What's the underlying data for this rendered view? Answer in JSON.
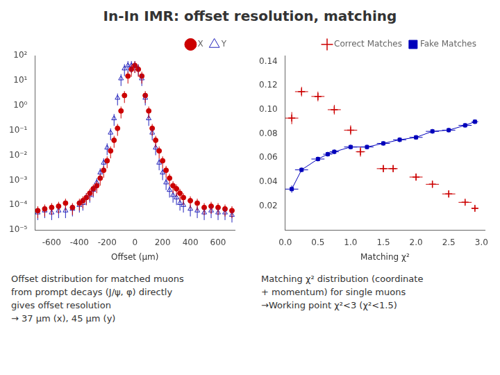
{
  "title": "In-In IMR: offset resolution, matching",
  "chart_data": [
    {
      "type": "scatter",
      "xlabel": "Offset (μm)",
      "log": "y",
      "grid": false,
      "legend": "upper right",
      "xlim": [
        -720,
        720
      ],
      "xticks": [
        -600,
        -400,
        -200,
        0,
        200,
        400,
        600
      ],
      "ylim": [
        1e-05,
        100
      ],
      "yticks": [
        {
          "value": 1e-05,
          "label": "10⁻⁵"
        },
        {
          "value": 0.0001,
          "label": "10⁻⁴"
        },
        {
          "value": 0.001,
          "label": "10⁻³"
        },
        {
          "value": 0.01,
          "label": "10⁻²"
        },
        {
          "value": 0.1,
          "label": "10⁻¹"
        },
        {
          "value": 1,
          "label": "10⁰"
        },
        {
          "value": 10,
          "label": "10¹"
        },
        {
          "value": 100,
          "label": "10²"
        }
      ],
      "annotations": [
        "Offset distribution for matched muons",
        "from prompt decays (J/ψ, φ) directly",
        "gives offset resolution",
        "→ 37 μm (x), 45 μm (y)"
      ],
      "series": [
        {
          "name": "Y",
          "color": "#2222BB",
          "marker": "triangle-open",
          "x": [
            -700,
            -650,
            -600,
            -550,
            -500,
            -450,
            -400,
            -375,
            -350,
            -325,
            -300,
            -275,
            -250,
            -225,
            -200,
            -175,
            -150,
            -125,
            -100,
            -75,
            -50,
            -25,
            0,
            25,
            50,
            75,
            100,
            125,
            150,
            175,
            200,
            225,
            250,
            275,
            300,
            325,
            350,
            400,
            450,
            500,
            550,
            600,
            650,
            700
          ],
          "values": [
            5e-05,
            6e-05,
            5e-05,
            6e-05,
            6e-05,
            7e-05,
            0.0001,
            0.00012,
            0.0002,
            0.00025,
            0.0004,
            0.0008,
            0.002,
            0.005,
            0.02,
            0.08,
            0.3,
            2.0,
            12,
            30,
            40,
            40,
            40,
            30,
            12,
            2.0,
            0.3,
            0.08,
            0.02,
            0.005,
            0.002,
            0.0008,
            0.0004,
            0.00025,
            0.0002,
            0.00012,
            0.0001,
            7e-05,
            6e-05,
            5e-05,
            6e-05,
            5e-05,
            5e-05,
            4e-05
          ],
          "y_errors": [
            2.5e-05,
            3e-05,
            2.5e-05,
            3e-05,
            3e-05,
            3.5e-05,
            5e-05,
            6e-05,
            0.0001,
            0.000125,
            0.0002,
            0.0004,
            0.001,
            0.0025,
            0.01,
            0.04,
            0.15,
            1,
            6,
            15,
            20,
            20,
            20,
            15,
            6,
            1,
            0.15,
            0.04,
            0.01,
            0.0025,
            0.001,
            0.0004,
            0.0002,
            0.000125,
            0.0001,
            6e-05,
            5e-05,
            3.5e-05,
            3e-05,
            2.5e-05,
            3e-05,
            2.5e-05,
            2.5e-05,
            2e-05
          ]
        },
        {
          "name": "X",
          "color": "#CC0000",
          "marker": "circle",
          "x": [
            -700,
            -650,
            -600,
            -550,
            -500,
            -450,
            -400,
            -375,
            -350,
            -325,
            -300,
            -275,
            -250,
            -225,
            -200,
            -175,
            -150,
            -125,
            -100,
            -75,
            -50,
            -25,
            0,
            25,
            50,
            75,
            100,
            125,
            150,
            175,
            200,
            225,
            250,
            275,
            300,
            325,
            350,
            400,
            450,
            500,
            550,
            600,
            650,
            700
          ],
          "values": [
            6e-05,
            7e-05,
            8e-05,
            9e-05,
            0.00012,
            8e-05,
            0.00012,
            0.00015,
            0.0002,
            0.0003,
            0.00045,
            0.0006,
            0.0012,
            0.0025,
            0.006,
            0.015,
            0.04,
            0.12,
            0.6,
            2.5,
            15,
            28,
            40,
            28,
            15,
            2.5,
            0.6,
            0.12,
            0.04,
            0.015,
            0.006,
            0.0025,
            0.0012,
            0.0006,
            0.00045,
            0.0003,
            0.0002,
            0.00015,
            0.00012,
            8e-05,
            9e-05,
            8e-05,
            7e-05,
            6e-05
          ],
          "y_errors": [
            3e-05,
            3.5e-05,
            4e-05,
            4.5e-05,
            6e-05,
            4e-05,
            6e-05,
            7.5e-05,
            0.0001,
            0.00015,
            0.000225,
            0.0003,
            0.0006,
            0.00125,
            0.003,
            0.0075,
            0.02,
            0.06,
            0.3,
            1.25,
            7.5,
            14,
            20,
            14,
            7.5,
            1.25,
            0.3,
            0.06,
            0.02,
            0.0075,
            0.003,
            0.00125,
            0.0006,
            0.0003,
            0.000225,
            0.00015,
            0.0001,
            7.5e-05,
            6e-05,
            4e-05,
            4.5e-05,
            4e-05,
            3.5e-05,
            3e-05
          ]
        }
      ]
    },
    {
      "type": "scatter",
      "xlabel": "Matching χ²",
      "grid": false,
      "legend": "upper right",
      "xlim": [
        0,
        3.05
      ],
      "xticks": [
        {
          "value": 0,
          "label": "0.0"
        },
        0.5,
        {
          "value": 1,
          "label": "1.0"
        },
        1.5,
        {
          "value": 2,
          "label": "2.0"
        },
        2.5,
        {
          "value": 3,
          "label": "3.0"
        }
      ],
      "ylim": [
        0,
        0.145
      ],
      "yticks": [
        0.02,
        0.04,
        0.06,
        0.08,
        {
          "value": 0.1,
          "label": "0.10"
        },
        0.12,
        0.14
      ],
      "annotations": [
        "Matching χ² distribution (coordinate",
        "+ momentum) for single muons",
        "→Working point χ²<3 (χ²<1.5)"
      ],
      "series": [
        {
          "name": "Fake Matches",
          "color": "#0000BB",
          "type": "line",
          "marker": "square",
          "line_style": "solid",
          "x": [
            0.1,
            0.25,
            0.5,
            0.65,
            0.75,
            1.0,
            1.25,
            1.5,
            1.75,
            2.0,
            2.25,
            2.5,
            2.75,
            2.9
          ],
          "values": [
            0.034,
            0.05,
            0.059,
            0.063,
            0.065,
            0.069,
            0.069,
            0.072,
            0.075,
            0.077,
            0.082,
            0.083,
            0.087,
            0.09
          ],
          "x_errors": [
            0.1,
            0.1,
            0.1,
            0.07,
            0.07,
            0.1,
            0.1,
            0.1,
            0.1,
            0.1,
            0.1,
            0.1,
            0.1,
            0.05
          ],
          "y_errors": [
            0.003,
            0.002,
            0.002,
            0.002,
            0.002,
            0.002,
            0.002,
            0.002,
            0.002,
            0.002,
            0.002,
            0.002,
            0.002,
            0.002
          ]
        },
        {
          "name": "Correct Matches",
          "color": "#CC0000",
          "type": "scatter",
          "marker": "plus",
          "x": [
            0.1,
            0.25,
            0.5,
            0.75,
            1.0,
            1.15,
            1.5,
            1.65,
            2.0,
            2.25,
            2.5,
            2.75,
            2.9
          ],
          "values": [
            0.093,
            0.115,
            0.111,
            0.1,
            0.083,
            0.065,
            0.051,
            0.051,
            0.044,
            0.038,
            0.03,
            0.023,
            0.018
          ],
          "x_errors": [
            0.1,
            0.1,
            0.1,
            0.1,
            0.1,
            0.07,
            0.1,
            0.07,
            0.1,
            0.1,
            0.1,
            0.1,
            0.05
          ],
          "y_errors": [
            0.005,
            0.004,
            0.004,
            0.004,
            0.004,
            0.004,
            0.003,
            0.003,
            0.003,
            0.003,
            0.003,
            0.002,
            0.002
          ]
        }
      ]
    }
  ]
}
